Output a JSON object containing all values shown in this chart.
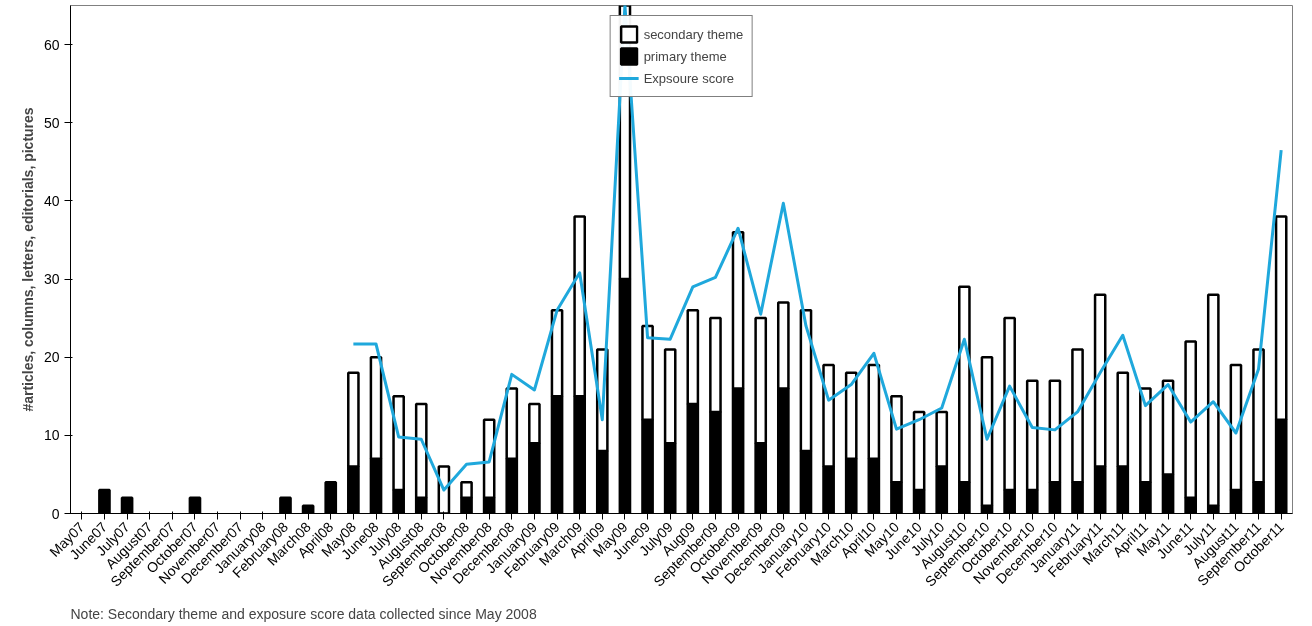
{
  "chart_data": {
    "type": "bar",
    "stacked": true,
    "categories": [
      "May07",
      "June07",
      "July07",
      "August07",
      "September07",
      "October07",
      "November07",
      "December07",
      "January08",
      "February08",
      "March08",
      "April08",
      "May08",
      "June08",
      "July08",
      "August08",
      "September08",
      "October08",
      "November08",
      "December08",
      "January09",
      "February09",
      "March09",
      "April09",
      "May09",
      "June09",
      "July09",
      "Aug09",
      "September09",
      "October09",
      "November09",
      "December09",
      "January10",
      "February10",
      "March10",
      "April10",
      "May10",
      "June10",
      "July10",
      "August10",
      "September10",
      "October10",
      "November10",
      "December10",
      "January11",
      "February11",
      "March11",
      "April11",
      "May11",
      "June11",
      "July11",
      "August11",
      "September11",
      "October11"
    ],
    "series": [
      {
        "name": "primary theme",
        "color": "#000000",
        "values": [
          null,
          3,
          2,
          null,
          null,
          2,
          null,
          null,
          null,
          2,
          1,
          4,
          6,
          7,
          3,
          2,
          0,
          2,
          2,
          7,
          9,
          15,
          15,
          8,
          30,
          12,
          9,
          14,
          13,
          16,
          9,
          16,
          8,
          6,
          7,
          7,
          4,
          3,
          6,
          4,
          1,
          3,
          3,
          4,
          4,
          6,
          6,
          4,
          5,
          2,
          1,
          3,
          4,
          12
        ]
      },
      {
        "name": "secondary theme",
        "color": "#ffffff",
        "values": [
          null,
          null,
          null,
          null,
          null,
          null,
          null,
          null,
          null,
          null,
          null,
          null,
          12,
          13,
          12,
          12,
          6,
          2,
          10,
          9,
          5,
          11,
          23,
          13,
          35,
          12,
          12,
          12,
          12,
          20,
          16,
          11,
          18,
          13,
          11,
          12,
          11,
          10,
          7,
          25,
          19,
          22,
          14,
          13,
          17,
          22,
          12,
          12,
          12,
          20,
          27,
          16,
          17,
          26
        ]
      },
      {
        "name": "Expsoure score",
        "type": "line",
        "color": "#1fa8dc",
        "values": [
          null,
          null,
          null,
          null,
          null,
          null,
          null,
          null,
          null,
          null,
          null,
          null,
          21.7,
          21.7,
          9.8,
          9.5,
          3,
          6.3,
          6.6,
          17.8,
          15.8,
          26,
          30.8,
          12,
          65,
          22.5,
          22.3,
          29,
          30.2,
          36.5,
          25.5,
          39.7,
          24,
          14.5,
          16.5,
          20.5,
          10.8,
          12,
          13.5,
          22.3,
          9.5,
          16.3,
          11,
          10.7,
          13,
          18,
          22.8,
          13.8,
          16.5,
          11.7,
          14.3,
          10.3,
          18.5,
          46.5
        ]
      }
    ],
    "ylim": [
      0,
      65
    ],
    "yticks": [
      0,
      10,
      20,
      30,
      40,
      50,
      60
    ],
    "ylabel": "#articles, columns, letters, editorials, pictures",
    "annotations": [
      "Note:  Secondary theme and exposure score data collected since May 2008"
    ],
    "legend": "top",
    "grid": false,
    "line_style": "solid",
    "marker": "none"
  }
}
